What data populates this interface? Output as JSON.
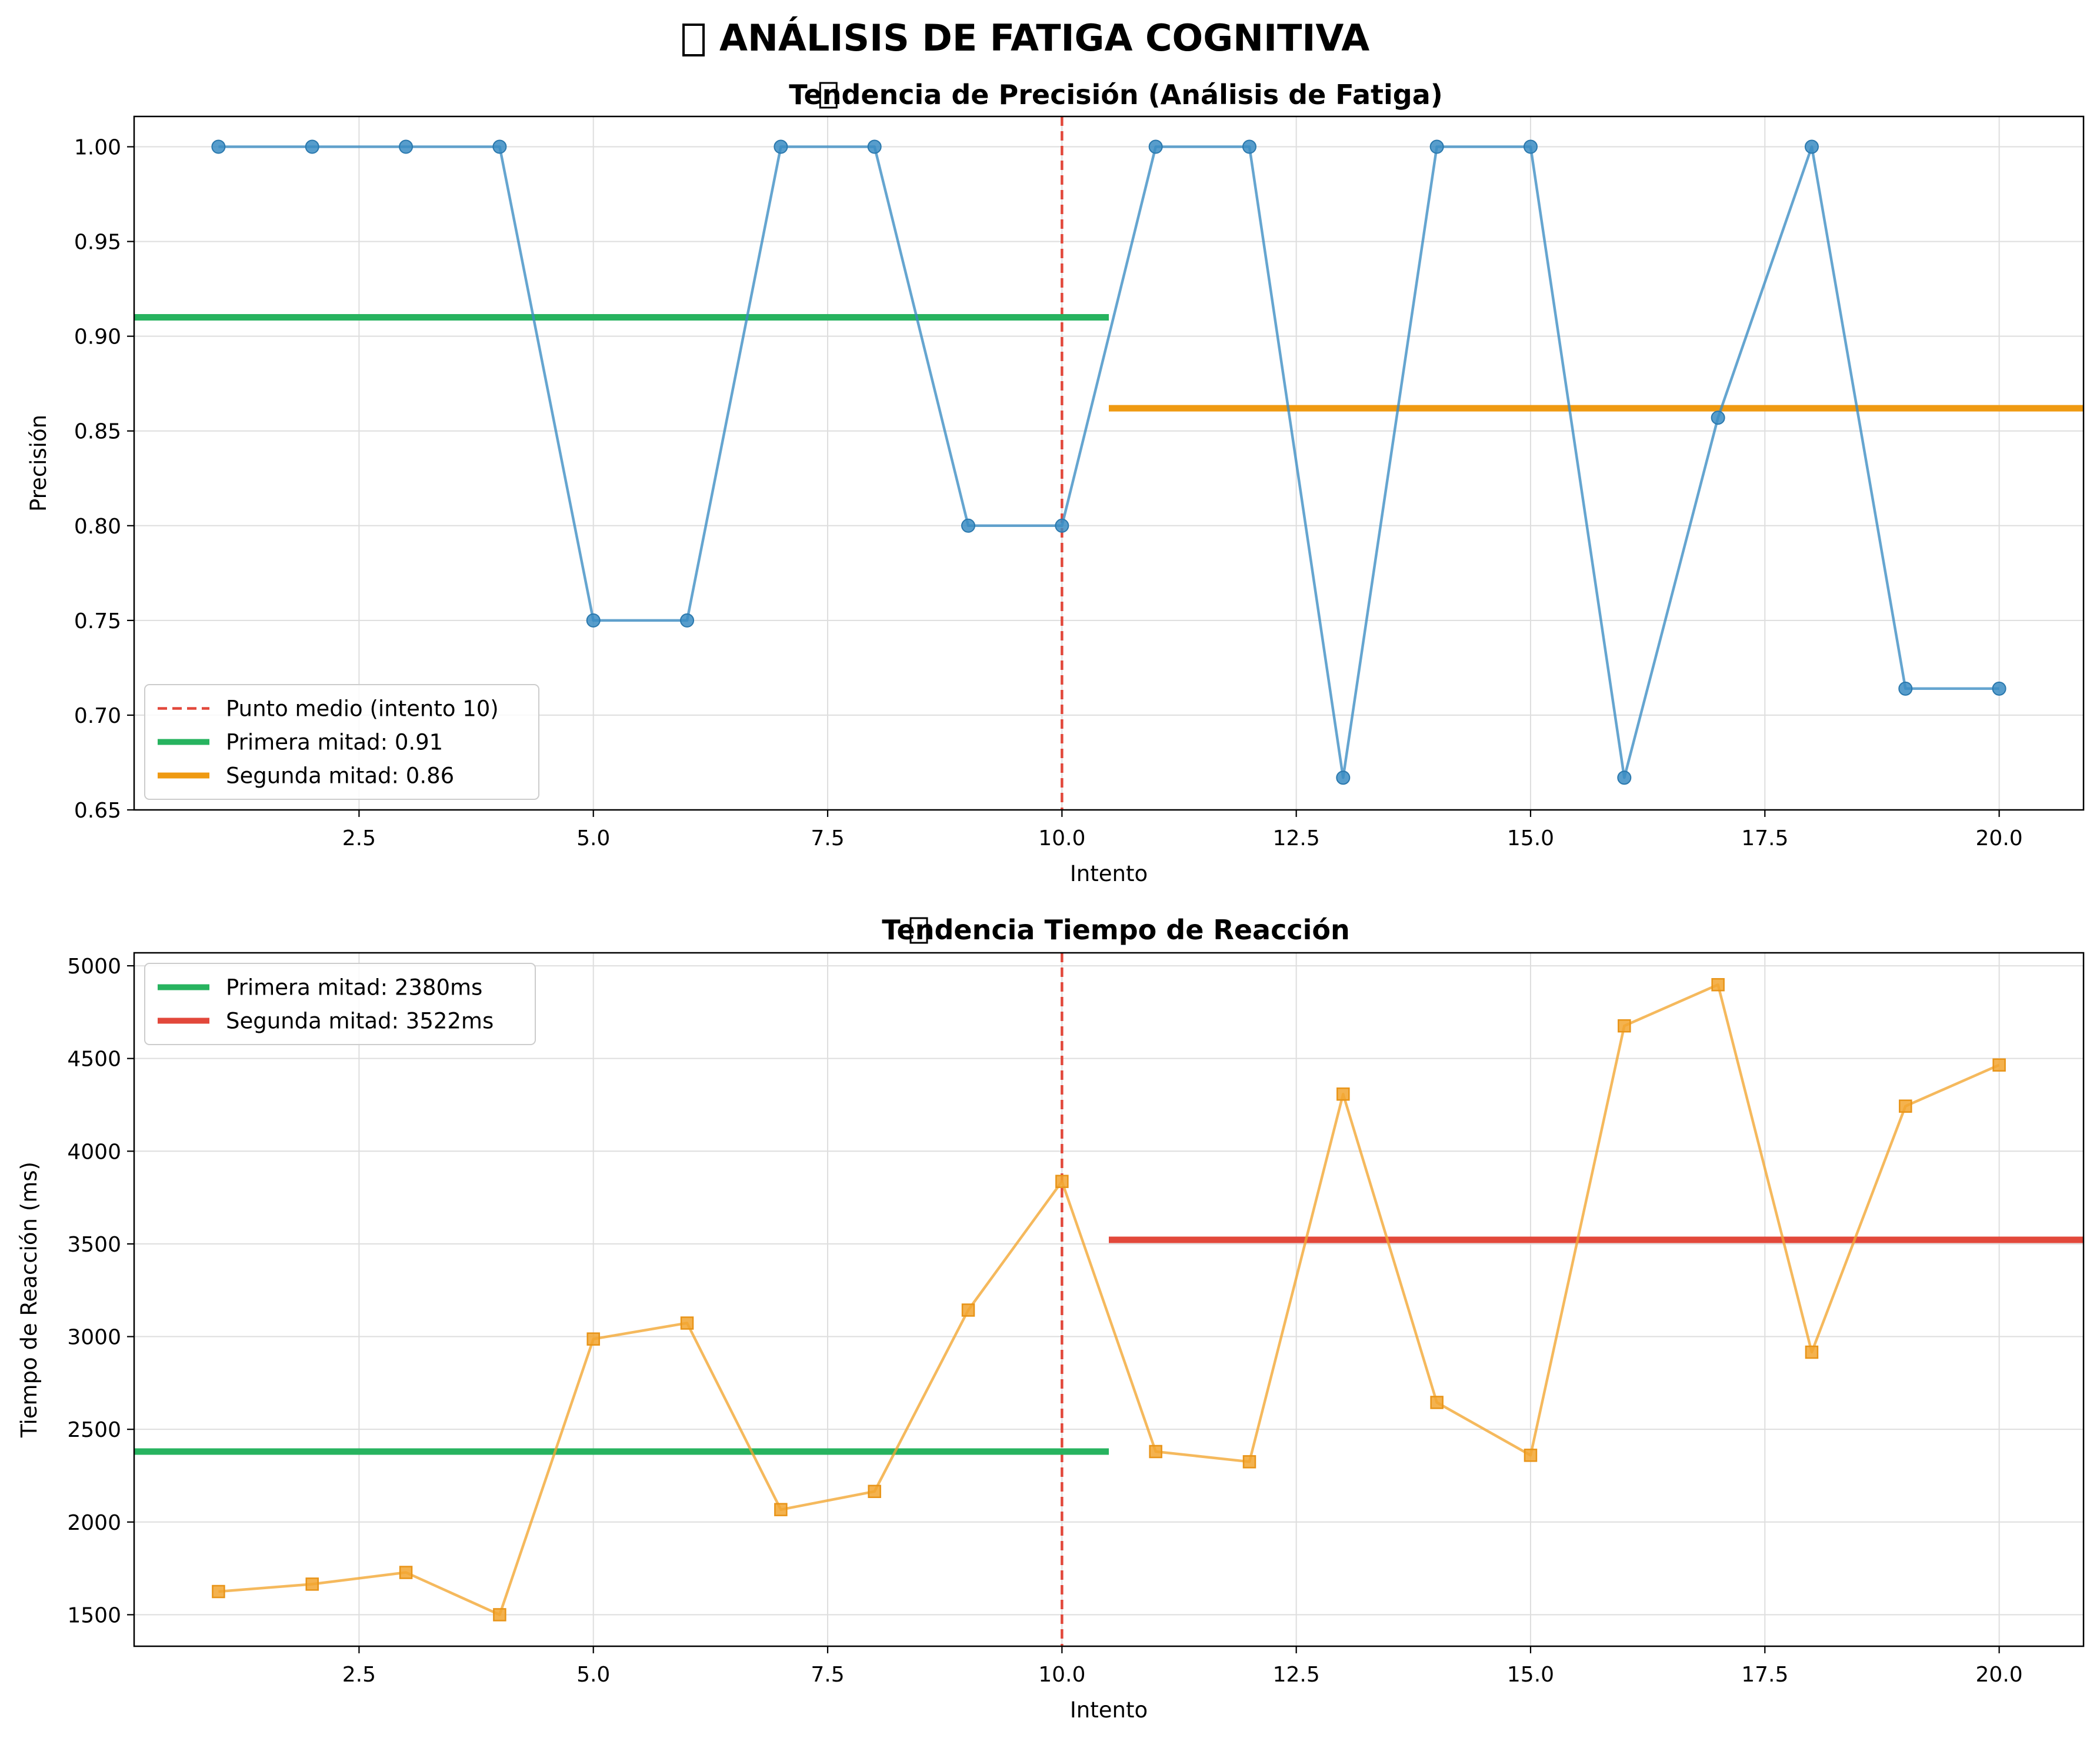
{
  "figure": {
    "title_icon": "image-glyph-box",
    "title": "ANÁLISIS DE FATIGA COGNITIVA"
  },
  "colors": {
    "blue": "#3a8cc3",
    "orange": "#f2a52f",
    "green": "#27b35f",
    "amber": "#ef9a12",
    "red": "#e2483b",
    "grid": "#dedede"
  },
  "chart_data": [
    {
      "type": "line",
      "title_icon": "image-glyph-box",
      "title": "Tendencia de Precisión (Análisis de Fatiga)",
      "xlabel": "Intento",
      "ylabel": "Precisión",
      "xlim": [
        0.1,
        20.9
      ],
      "ylim": [
        0.65,
        1.016
      ],
      "xticks": [
        "2.5",
        "5.0",
        "7.5",
        "10.0",
        "12.5",
        "15.0",
        "17.5",
        "20.0"
      ],
      "yticks": [
        "0.65",
        "0.70",
        "0.75",
        "0.80",
        "0.85",
        "0.90",
        "0.95",
        "1.00"
      ],
      "grid": true,
      "legend_position": "lower-left",
      "series": [
        {
          "x": [
            1,
            2,
            3,
            4,
            5,
            6,
            7,
            8,
            9,
            10,
            11,
            12,
            13,
            14,
            15,
            16,
            17,
            18,
            19,
            20
          ],
          "values": [
            1.0,
            1.0,
            1.0,
            1.0,
            0.75,
            0.75,
            1.0,
            1.0,
            0.8,
            0.8,
            1.0,
            1.0,
            0.667,
            1.0,
            1.0,
            0.667,
            0.857,
            1.0,
            0.714,
            0.714
          ],
          "color": "#3a8cc3",
          "marker": "circle"
        }
      ],
      "midpoint": {
        "x": 10,
        "label": "Punto medio (intento 10)",
        "color": "#e2483b"
      },
      "averages": [
        {
          "label": "Primera mitad: 0.91",
          "value": 0.91,
          "x_from": 0.1,
          "x_to": 10.5,
          "color": "#27b35f"
        },
        {
          "label": "Segunda mitad: 0.86",
          "value": 0.862,
          "x_from": 10.5,
          "x_to": 20.9,
          "color": "#ef9a12"
        }
      ]
    },
    {
      "type": "line",
      "title_icon": "image-glyph-box",
      "title": "Tendencia Tiempo de Reacción",
      "xlabel": "Intento",
      "ylabel": "Tiempo de Reacción (ms)",
      "xlim": [
        0.1,
        20.9
      ],
      "ylim": [
        1330,
        5070
      ],
      "xticks": [
        "2.5",
        "5.0",
        "7.5",
        "10.0",
        "12.5",
        "15.0",
        "17.5",
        "20.0"
      ],
      "yticks": [
        "1500",
        "2000",
        "2500",
        "3000",
        "3500",
        "4000",
        "4500",
        "5000"
      ],
      "grid": true,
      "legend_position": "upper-left",
      "series": [
        {
          "x": [
            1,
            2,
            3,
            4,
            5,
            6,
            7,
            8,
            9,
            10,
            11,
            12,
            13,
            14,
            15,
            16,
            17,
            18,
            19,
            20
          ],
          "values": [
            1625,
            1665,
            1728,
            1500,
            2987,
            3073,
            2067,
            2165,
            3143,
            3837,
            2380,
            2325,
            4308,
            2645,
            2360,
            4676,
            4898,
            2916,
            4243,
            4465
          ],
          "color": "#f2a52f",
          "marker": "square"
        }
      ],
      "midpoint": {
        "x": 10,
        "label": "",
        "color": "#e2483b"
      },
      "averages": [
        {
          "label": "Primera mitad: 2380ms",
          "value": 2380,
          "x_from": 0.1,
          "x_to": 10.5,
          "color": "#27b35f"
        },
        {
          "label": "Segunda mitad: 3522ms",
          "value": 3522,
          "x_from": 10.5,
          "x_to": 20.9,
          "color": "#e2483b"
        }
      ]
    }
  ]
}
